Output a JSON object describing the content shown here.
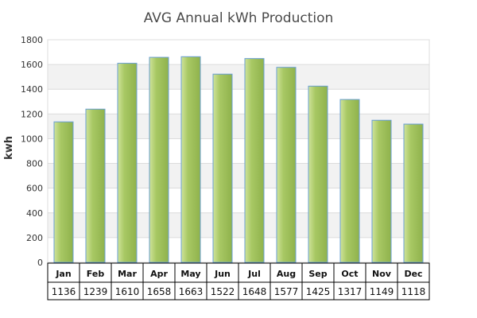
{
  "chart_data": {
    "type": "bar",
    "title": "AVG Annual kWh Production",
    "xlabel": "",
    "ylabel": "kwh",
    "ylim": [
      0,
      1800
    ],
    "yticks": [
      0,
      200,
      400,
      600,
      800,
      1000,
      1200,
      1400,
      1600,
      1800
    ],
    "categories": [
      "Jan",
      "Feb",
      "Mar",
      "Apr",
      "May",
      "Jun",
      "Jul",
      "Aug",
      "Sep",
      "Oct",
      "Nov",
      "Dec"
    ],
    "values": [
      1136,
      1239,
      1610,
      1658,
      1663,
      1522,
      1648,
      1577,
      1425,
      1317,
      1149,
      1118
    ],
    "value_labels": [
      "1136",
      "1239",
      "1610",
      "1658",
      "1663",
      "1522",
      "1648",
      "1577",
      "1425",
      "1317",
      "1149",
      "1118"
    ],
    "grid": true,
    "data_table": true,
    "colors": {
      "bar_light": "#cfe39a",
      "bar_mid": "#a8c864",
      "bar_dark": "#8fb24c",
      "bar_stroke": "#6a9fd4",
      "band_alt": "#f2f2f2",
      "grid": "#dcdcdc",
      "table_border": "#000000"
    }
  }
}
